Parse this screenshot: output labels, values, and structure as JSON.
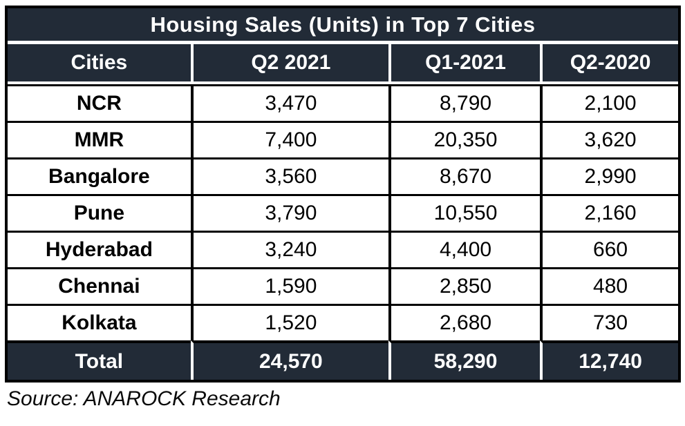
{
  "title": "Housing Sales (Units) in Top 7 Cities",
  "source": "Source: ANAROCK Research",
  "colors": {
    "header_bg": "#222B37",
    "header_text": "#FFFFFF",
    "body_text": "#000000",
    "border": "#000000",
    "row_bg": "#FFFFFF"
  },
  "table": {
    "columns": [
      "Cities",
      "Q2 2021",
      "Q1-2021",
      "Q2-2020"
    ],
    "rows": [
      {
        "city": "NCR",
        "values": [
          "3,470",
          "8,790",
          "2,100"
        ]
      },
      {
        "city": "MMR",
        "values": [
          "7,400",
          "20,350",
          "3,620"
        ]
      },
      {
        "city": "Bangalore",
        "values": [
          "3,560",
          "8,670",
          "2,990"
        ]
      },
      {
        "city": "Pune",
        "values": [
          "3,790",
          "10,550",
          "2,160"
        ]
      },
      {
        "city": "Hyderabad",
        "values": [
          "3,240",
          "4,400",
          "660"
        ]
      },
      {
        "city": "Chennai",
        "values": [
          "1,590",
          "2,850",
          "480"
        ]
      },
      {
        "city": "Kolkata",
        "values": [
          "1,520",
          "2,680",
          "730"
        ]
      }
    ],
    "total": {
      "label": "Total",
      "values": [
        "24,570",
        "58,290",
        "12,740"
      ]
    }
  },
  "chart_data": {
    "type": "table",
    "title": "Housing Sales (Units) in Top 7 Cities",
    "categories": [
      "NCR",
      "MMR",
      "Bangalore",
      "Pune",
      "Hyderabad",
      "Chennai",
      "Kolkata"
    ],
    "series": [
      {
        "name": "Q2 2021",
        "values": [
          3470,
          7400,
          3560,
          3790,
          3240,
          1590,
          1520
        ],
        "total": 24570
      },
      {
        "name": "Q1-2021",
        "values": [
          8790,
          20350,
          8670,
          10550,
          4400,
          2850,
          2680
        ],
        "total": 58290
      },
      {
        "name": "Q2-2020",
        "values": [
          2100,
          3620,
          2990,
          2160,
          660,
          480,
          730
        ],
        "total": 12740
      }
    ],
    "source": "ANAROCK Research"
  }
}
